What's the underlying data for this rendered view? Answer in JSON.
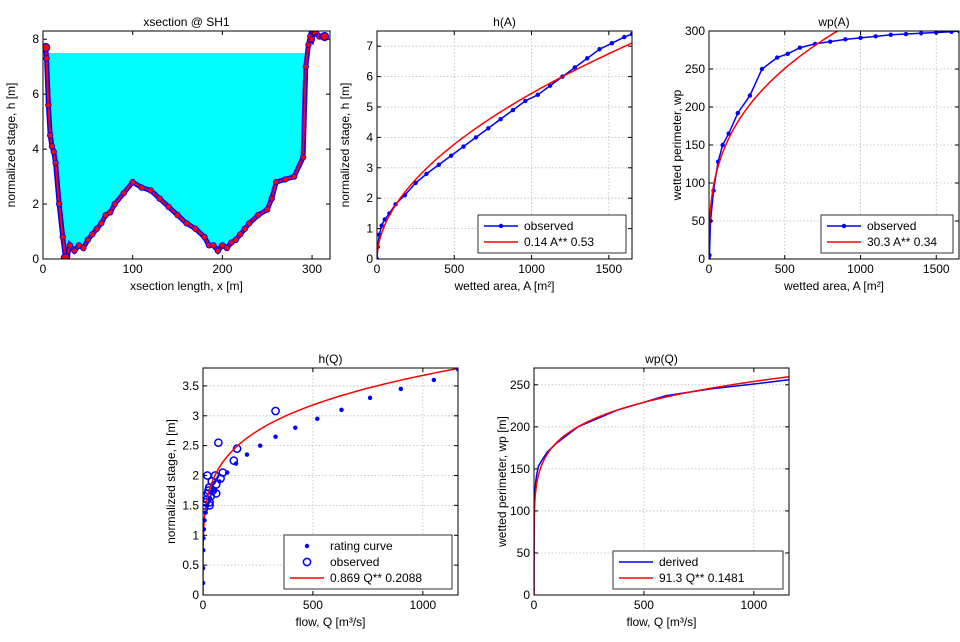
{
  "colors": {
    "observed": "#0000ff",
    "fit": "#ff0000",
    "fill": "#00ffff",
    "grid": "#bbbbbb"
  },
  "chart_data": [
    {
      "id": "xsec",
      "type": "area",
      "title": "xsection @ SH1",
      "xlabel": "xsection length, x [m]",
      "ylabel": "normalized stage, h [m]",
      "xlim": [
        0,
        320
      ],
      "ylim": [
        0,
        8.3
      ],
      "xticks": [
        0,
        100,
        200,
        300
      ],
      "yticks": [
        0,
        2,
        4,
        6,
        8
      ],
      "grid": false,
      "water_level": 7.5,
      "x": [
        3,
        4,
        6,
        8,
        10,
        12,
        14,
        18,
        22,
        25,
        27,
        30,
        35,
        40,
        45,
        50,
        55,
        60,
        65,
        70,
        75,
        80,
        90,
        100,
        110,
        120,
        130,
        140,
        150,
        160,
        170,
        180,
        185,
        190,
        195,
        200,
        205,
        210,
        215,
        220,
        225,
        230,
        240,
        250,
        255,
        260,
        270,
        280,
        290,
        293,
        296,
        298,
        300,
        302,
        305,
        308,
        311,
        314
      ],
      "y": [
        7.7,
        7.3,
        5.6,
        4.5,
        4.1,
        3.9,
        3.5,
        2.0,
        0.8,
        0.05,
        0.1,
        0.5,
        0.3,
        0.5,
        0.4,
        0.7,
        0.9,
        1.1,
        1.3,
        1.6,
        1.7,
        2.0,
        2.4,
        2.8,
        2.6,
        2.5,
        2.2,
        1.9,
        1.6,
        1.3,
        1.1,
        0.8,
        0.5,
        0.5,
        0.3,
        0.5,
        0.4,
        0.6,
        0.7,
        0.9,
        1.1,
        1.3,
        1.6,
        1.8,
        2.2,
        2.8,
        2.9,
        3.0,
        3.7,
        7.0,
        7.8,
        8.1,
        8.0,
        8.3,
        8.2,
        8.1,
        8.1,
        8.1
      ]
    },
    {
      "id": "hA",
      "type": "line",
      "title": "h(A)",
      "xlabel": "wetted area, A [m²]",
      "ylabel": "normalized stage, h [m]",
      "xlim": [
        0,
        1650
      ],
      "ylim": [
        0,
        7.5
      ],
      "xticks": [
        0,
        500,
        1000,
        1500
      ],
      "yticks": [
        0,
        1,
        2,
        3,
        4,
        5,
        6,
        7
      ],
      "grid": true,
      "legend_position": "bottom-right",
      "series": [
        {
          "name": "observed",
          "style": "line-dots",
          "x": [
            0,
            5,
            15,
            30,
            50,
            80,
            120,
            180,
            250,
            320,
            400,
            480,
            560,
            640,
            720,
            800,
            880,
            960,
            1040,
            1120,
            1200,
            1280,
            1360,
            1440,
            1520,
            1600,
            1650
          ],
          "y": [
            0,
            0.4,
            0.8,
            1.1,
            1.3,
            1.5,
            1.8,
            2.1,
            2.5,
            2.8,
            3.1,
            3.4,
            3.7,
            4.0,
            4.3,
            4.6,
            4.9,
            5.2,
            5.4,
            5.7,
            6.0,
            6.3,
            6.6,
            6.9,
            7.1,
            7.3,
            7.4
          ]
        },
        {
          "name": "0.14 A** 0.53",
          "style": "line",
          "a": 0.14,
          "b": 0.53
        }
      ]
    },
    {
      "id": "wpA",
      "type": "line",
      "title": "wp(A)",
      "xlabel": "wetted area, A [m²]",
      "ylabel": "wetted perimeter, wp",
      "xlim": [
        0,
        1650
      ],
      "ylim": [
        0,
        300
      ],
      "xticks": [
        0,
        500,
        1000,
        1500
      ],
      "yticks": [
        0,
        50,
        100,
        150,
        200,
        250,
        300
      ],
      "grid": true,
      "legend_position": "bottom-right",
      "series": [
        {
          "name": "observed",
          "style": "line-dots",
          "x": [
            0,
            3,
            10,
            30,
            60,
            90,
            130,
            190,
            270,
            350,
            450,
            520,
            600,
            700,
            800,
            900,
            1000,
            1100,
            1200,
            1300,
            1400,
            1500,
            1600,
            1650
          ],
          "y": [
            0,
            5,
            50,
            90,
            128,
            150,
            165,
            192,
            215,
            250,
            265,
            270,
            278,
            283,
            286,
            289,
            291,
            293,
            295,
            296,
            297,
            298,
            299,
            300
          ]
        },
        {
          "name": "30.3 A** 0.34",
          "style": "line",
          "a": 30.3,
          "b": 0.34
        }
      ]
    },
    {
      "id": "hQ",
      "type": "scatter",
      "title": "h(Q)",
      "xlabel": "flow, Q [m³/s]",
      "ylabel": "normalized stage, h [m]",
      "xlim": [
        0,
        1160
      ],
      "ylim": [
        0,
        3.8
      ],
      "xticks": [
        0,
        500,
        1000
      ],
      "yticks": [
        0,
        0.5,
        1,
        1.5,
        2,
        2.5,
        3,
        3.5
      ],
      "grid": true,
      "legend_position": "bottom-right",
      "series": [
        {
          "name": "rating curve",
          "style": "dots",
          "x": [
            0.05,
            0.3,
            1,
            2,
            4,
            7,
            12,
            20,
            32,
            50,
            75,
            110,
            150,
            200,
            260,
            330,
            420,
            520,
            630,
            760,
            900,
            1050,
            1160
          ],
          "y": [
            0.2,
            0.45,
            0.75,
            0.95,
            1.1,
            1.25,
            1.38,
            1.5,
            1.62,
            1.75,
            1.9,
            2.05,
            2.2,
            2.35,
            2.5,
            2.65,
            2.8,
            2.95,
            3.1,
            3.3,
            3.45,
            3.6,
            3.78
          ]
        },
        {
          "name": "observed",
          "style": "circles",
          "x": [
            5,
            8,
            12,
            18,
            20,
            22,
            25,
            28,
            30,
            35,
            40,
            45,
            55,
            60,
            70,
            90,
            140,
            155,
            330,
            30,
            60,
            80
          ],
          "y": [
            1.45,
            1.5,
            1.55,
            1.6,
            2.0,
            1.7,
            1.75,
            1.8,
            1.5,
            1.65,
            1.9,
            1.75,
            2.0,
            1.85,
            2.55,
            2.05,
            2.25,
            2.45,
            3.08,
            1.55,
            1.7,
            1.95
          ]
        },
        {
          "name": "0.869 Q** 0.2088",
          "style": "line",
          "a": 0.869,
          "b": 0.2088
        }
      ]
    },
    {
      "id": "wpQ",
      "type": "line",
      "title": "wp(Q)",
      "xlabel": "flow, Q [m³/s]",
      "ylabel": "wetted perimeter, wp [m]",
      "xlim": [
        0,
        1160
      ],
      "ylim": [
        0,
        270
      ],
      "xticks": [
        0,
        500,
        1000
      ],
      "yticks": [
        0,
        50,
        100,
        150,
        200,
        250
      ],
      "grid": true,
      "legend_position": "bottom-right",
      "series": [
        {
          "name": "derived",
          "style": "line",
          "x": [
            0,
            0.5,
            1,
            2,
            3,
            5,
            8,
            12,
            20,
            35,
            60,
            100,
            200,
            380,
            600,
            800,
            1000,
            1160
          ],
          "y": [
            0,
            60,
            90,
            105,
            115,
            125,
            135,
            143,
            153,
            160,
            170,
            180,
            200,
            220,
            237,
            245,
            251,
            256
          ]
        },
        {
          "name": "91.3 Q** 0.1481",
          "style": "line",
          "a": 91.3,
          "b": 0.1481
        }
      ]
    }
  ]
}
